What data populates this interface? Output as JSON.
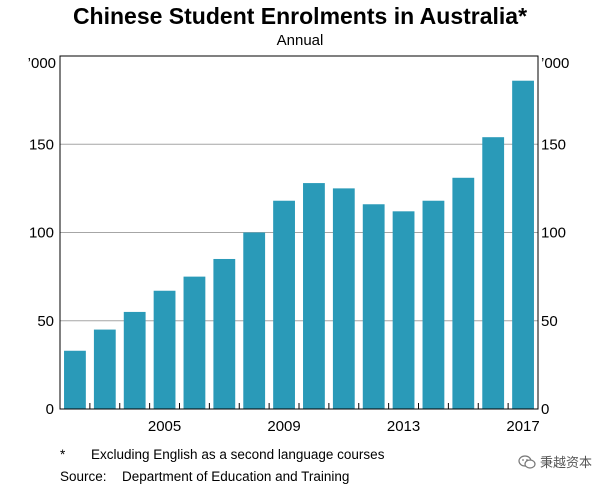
{
  "title": "Chinese Student Enrolments in Australia*",
  "subtitle": "Annual",
  "footnote": {
    "marker": "*",
    "text": "Excluding English as a second language courses"
  },
  "source": {
    "label": "Source:",
    "text": "Department of Education and Training"
  },
  "watermark": {
    "text": "秉越资本",
    "icon": "wechat-icon"
  },
  "colors": {
    "bar": "#2a9ab8",
    "grid": "#a6a6a6",
    "axis": "#000000"
  },
  "chart_data": {
    "type": "bar",
    "title": "Chinese Student Enrolments in Australia*",
    "subtitle": "Annual",
    "unit_label_left": "’000",
    "unit_label_right": "’000",
    "categories": [
      "2002",
      "2003",
      "2004",
      "2005",
      "2006",
      "2007",
      "2008",
      "2009",
      "2010",
      "2011",
      "2012",
      "2013",
      "2014",
      "2015",
      "2016",
      "2017"
    ],
    "values": [
      33,
      45,
      55,
      67,
      75,
      85,
      100,
      118,
      128,
      125,
      116,
      112,
      118,
      131,
      154,
      186
    ],
    "x_tick_labels": [
      "2005",
      "2009",
      "2013",
      "2017"
    ],
    "y_ticks": [
      0,
      50,
      100,
      150
    ],
    "ylim": [
      0,
      200
    ],
    "grid": true
  }
}
